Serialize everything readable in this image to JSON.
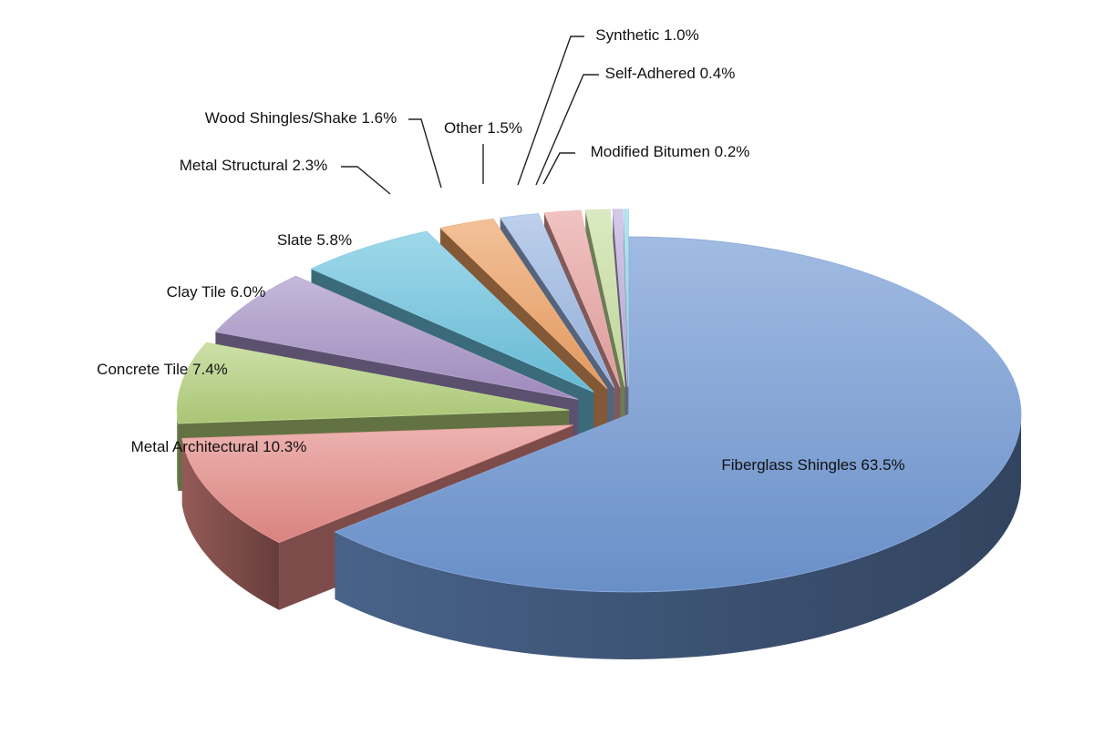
{
  "chart_data": {
    "type": "pie",
    "title": "",
    "exploded": true,
    "three_d": true,
    "slices": [
      {
        "name": "Fiberglass Shingles",
        "value": 63.5,
        "label": "Fiberglass Shingles 63.5%",
        "color": "#6f97d3"
      },
      {
        "name": "Metal Architectural",
        "value": 10.3,
        "label": "Metal Architectural 10.3%",
        "color": "#e48a86"
      },
      {
        "name": "Concrete Tile",
        "value": 7.4,
        "label": "Concrete Tile 7.4%",
        "color": "#b2cf7a"
      },
      {
        "name": "Clay Tile",
        "value": 6.0,
        "label": "Clay Tile 6.0%",
        "color": "#a691c6"
      },
      {
        "name": "Slate",
        "value": 5.8,
        "label": "Slate 5.8%",
        "color": "#6cc3df"
      },
      {
        "name": "Metal Structural",
        "value": 2.3,
        "label": "Metal Structural 2.3%",
        "color": "#eda062"
      },
      {
        "name": "Wood Shingles/Shake",
        "value": 1.6,
        "label": "Wood Shingles/Shake 1.6%",
        "color": "#9ab6e2"
      },
      {
        "name": "Other",
        "value": 1.5,
        "label": "Other 1.5%",
        "color": "#e8a3a1"
      },
      {
        "name": "Synthetic",
        "value": 1.0,
        "label": "Synthetic 1.0%",
        "color": "#c8df9f"
      },
      {
        "name": "Self-Adhered",
        "value": 0.4,
        "label": "Self-Adhered 0.4%",
        "color": "#bcaddb"
      },
      {
        "name": "Modified Bitumen",
        "value": 0.2,
        "label": "Modified Bitumen 0.2%",
        "color": "#94d6ea"
      }
    ],
    "legend": "none"
  }
}
